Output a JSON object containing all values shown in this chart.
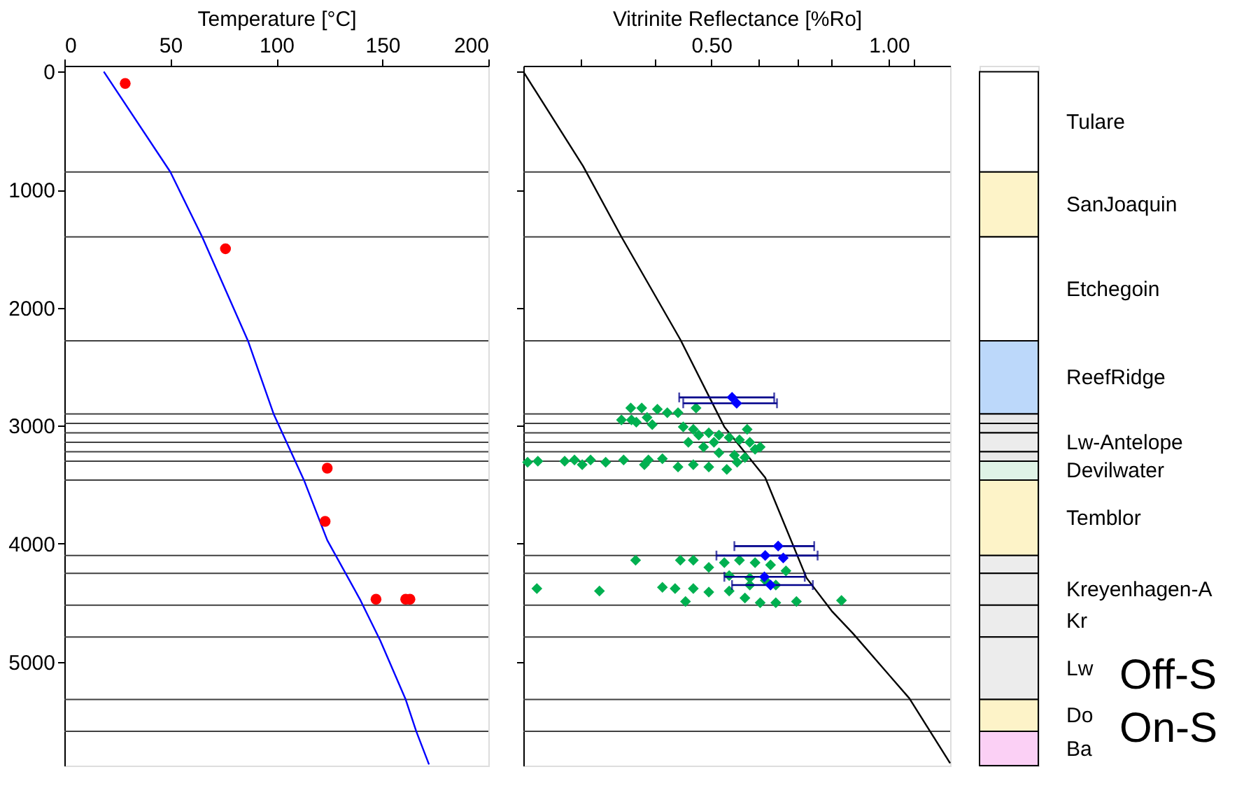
{
  "chart_data": [
    {
      "type": "scatter",
      "xlabel": "Temperature [°C]",
      "xlim": [
        0,
        200
      ],
      "xticks": [
        0,
        50,
        100,
        150,
        200
      ],
      "ylim": [
        5880,
        -50
      ],
      "yticks": [
        0,
        1000,
        2000,
        3000,
        4000,
        5000
      ],
      "grid": false,
      "ref_lines": [
        {
          "axis": "y",
          "value": 850,
          "color": "#404040"
        },
        {
          "axis": "y",
          "value": 1400,
          "color": "#404040"
        },
        {
          "axis": "y",
          "value": 2280,
          "color": "#404040"
        },
        {
          "axis": "y",
          "value": 2900,
          "color": "#404040"
        },
        {
          "axis": "y",
          "value": 2980,
          "color": "#404040"
        },
        {
          "axis": "y",
          "value": 3060,
          "color": "#404040"
        },
        {
          "axis": "y",
          "value": 3140,
          "color": "#404040"
        },
        {
          "axis": "y",
          "value": 3220,
          "color": "#404040"
        },
        {
          "axis": "y",
          "value": 3300,
          "color": "#404040"
        },
        {
          "axis": "y",
          "value": 3460,
          "color": "#404040"
        },
        {
          "axis": "y",
          "value": 4100,
          "color": "#404040"
        },
        {
          "axis": "y",
          "value": 4250,
          "color": "#404040"
        },
        {
          "axis": "y",
          "value": 4520,
          "color": "#404040"
        },
        {
          "axis": "y",
          "value": 4790,
          "color": "#404040"
        },
        {
          "axis": "y",
          "value": 5320,
          "color": "#404040"
        },
        {
          "axis": "y",
          "value": 5590,
          "color": "#404040"
        }
      ],
      "series": [
        {
          "type": "line",
          "color": "#0000ff",
          "line_style": "solid",
          "marker": "none",
          "x": [
            18.6,
            50,
            65,
            86.6,
            98.7,
            101,
            113,
            124,
            139.7,
            149,
            161,
            166,
            172
          ],
          "values": [
            0,
            850,
            1400,
            2280,
            2900,
            2990,
            3460,
            3970,
            4480,
            4820,
            5320,
            5590,
            5870
          ]
        },
        {
          "type": "scatter",
          "color": "#ff0000",
          "marker": "circle",
          "x": [
            28.7,
            76,
            124,
            123,
            147,
            161,
            163
          ],
          "values": [
            100,
            1500,
            3360,
            3810,
            4470,
            4470,
            4470
          ]
        }
      ]
    },
    {
      "type": "scatter",
      "xlabel": "Vitrinite Reflectance [%Ro]",
      "log": "x",
      "xlim": [
        0.24,
        1.27
      ],
      "xticks": [
        {
          "value": 0.3,
          "label": null
        },
        {
          "value": 0.4,
          "label": null
        },
        {
          "value": 0.5,
          "label": "0.50"
        },
        {
          "value": 0.6,
          "label": null
        },
        {
          "value": 0.7,
          "label": null
        },
        {
          "value": 0.8,
          "label": null
        },
        {
          "value": 1.0,
          "label": "1.00"
        },
        {
          "value": 1.1,
          "label": null
        }
      ],
      "ylim": [
        5880,
        -50
      ],
      "yticks": [
        0,
        1000,
        2000,
        3000,
        4000,
        5000
      ],
      "tick_labels": "x",
      "grid": false,
      "ref_lines": [
        {
          "axis": "y",
          "value": 850,
          "color": "#404040"
        },
        {
          "axis": "y",
          "value": 1400,
          "color": "#404040"
        },
        {
          "axis": "y",
          "value": 2280,
          "color": "#404040"
        },
        {
          "axis": "y",
          "value": 2900,
          "color": "#404040"
        },
        {
          "axis": "y",
          "value": 2980,
          "color": "#404040"
        },
        {
          "axis": "y",
          "value": 3060,
          "color": "#404040"
        },
        {
          "axis": "y",
          "value": 3140,
          "color": "#404040"
        },
        {
          "axis": "y",
          "value": 3220,
          "color": "#404040"
        },
        {
          "axis": "y",
          "value": 3300,
          "color": "#404040"
        },
        {
          "axis": "y",
          "value": 3460,
          "color": "#404040"
        },
        {
          "axis": "y",
          "value": 4100,
          "color": "#404040"
        },
        {
          "axis": "y",
          "value": 4250,
          "color": "#404040"
        },
        {
          "axis": "y",
          "value": 4520,
          "color": "#404040"
        },
        {
          "axis": "y",
          "value": 4790,
          "color": "#404040"
        },
        {
          "axis": "y",
          "value": 5320,
          "color": "#404040"
        },
        {
          "axis": "y",
          "value": 5590,
          "color": "#404040"
        }
      ],
      "series": [
        {
          "type": "line",
          "color": "#000000",
          "line_style": "solid",
          "marker": "none",
          "x": [
            0.24,
            0.303,
            0.352,
            0.443,
            0.526,
            0.617,
            0.725,
            0.8,
            0.869,
            1.083,
            1.27
          ],
          "values": [
            0,
            800,
            1400,
            2270,
            3010,
            3440,
            4290,
            4570,
            4760,
            5310,
            5860
          ]
        },
        {
          "type": "scatter",
          "color": "#00b050",
          "marker": "diamond",
          "x": [
            0.405,
            0.421,
            0.439,
            0.389,
            0.397,
            0.471,
            0.448,
            0.466,
            0.495,
            0.515,
            0.536,
            0.558,
            0.581,
            0.605,
            0.575,
            0.457,
            0.485,
            0.515,
            0.547,
            0.57,
            0.413,
            0.439,
            0.466,
            0.495,
            0.531,
            0.553,
            0.593,
            0.476,
            0.505,
            0.443,
            0.466,
            0.495,
            0.526,
            0.558,
            0.593,
            0.63,
            0.669,
            0.536,
            0.581,
            0.617,
            0.643,
            0.413,
            0.434,
            0.466,
            0.495,
            0.536,
            0.57,
            0.605,
            0.643,
            0.697,
            0.452,
            0.831,
            0.581
          ],
          "values": [
            2860,
            2890,
            2890,
            2930,
            2990,
            2850,
            3010,
            3030,
            3060,
            3080,
            3100,
            3120,
            3140,
            3180,
            3030,
            3140,
            3180,
            3230,
            3250,
            3270,
            3280,
            3350,
            3330,
            3350,
            3370,
            3310,
            3200,
            3080,
            3140,
            4140,
            4140,
            4200,
            4160,
            4140,
            4160,
            4180,
            4230,
            4270,
            4290,
            4310,
            4350,
            4370,
            4380,
            4380,
            4410,
            4400,
            4460,
            4500,
            4500,
            4490,
            4490,
            4480,
            4350
          ]
        },
        {
          "type": "scatter",
          "color": "#00b050",
          "marker": "diamond",
          "x": [
            0.244,
            0.254,
            0.282,
            0.293,
            0.302,
            0.312,
            0.331,
            0.355,
            0.385,
            0.391,
            0.352,
            0.366,
            0.365,
            0.381,
            0.373,
            0.372,
            0.253,
            0.323
          ],
          "values": [
            3310,
            3300,
            3300,
            3290,
            3330,
            3290,
            3310,
            3290,
            3330,
            3290,
            2950,
            2950,
            2850,
            2850,
            2970,
            4140,
            4380,
            4400
          ]
        },
        {
          "type": "scatter",
          "color": "#0000ff",
          "marker": "diamond",
          "x": [
            0.542,
            0.552,
            0.649,
            0.617,
            0.662,
            0.615,
            0.63
          ],
          "values": [
            2760,
            2810,
            4020,
            4100,
            4120,
            4280,
            4350
          ],
          "xerrors": [
            [
              0.441,
              0.639
            ],
            [
              0.448,
              0.646
            ],
            [
              0.547,
              0.747
            ],
            [
              0.51,
              0.757
            ],
            null,
            [
              0.526,
              0.72
            ],
            [
              0.542,
              0.743
            ]
          ]
        }
      ]
    },
    {
      "type": "bar",
      "stacked": true,
      "categories": [
        null
      ],
      "ylim": [
        5880,
        -50
      ],
      "annotations": [
        "Off-S",
        "On-S"
      ],
      "series": [
        {
          "name": "Tulare",
          "color": "#ffffff",
          "values": [
            850
          ]
        },
        {
          "name": "SanJoaquin",
          "color": "#fdf3c8",
          "values": [
            550
          ]
        },
        {
          "name": "Etchegoin",
          "color": "#ffffff",
          "values": [
            880
          ]
        },
        {
          "name": "ReefRidge",
          "color": "#bcd8fa",
          "values": [
            620
          ]
        },
        {
          "color": "#e8e8e8",
          "values": [
            80
          ]
        },
        {
          "color": "#e8e8e8",
          "values": [
            80
          ]
        },
        {
          "name": "Lw-Antelope",
          "color": "#ececec",
          "values": [
            160
          ]
        },
        {
          "color": "#e8e8e8",
          "values": [
            80
          ]
        },
        {
          "name": "Devilwater",
          "color": "#dff3e6",
          "values": [
            160
          ]
        },
        {
          "name": "Temblor",
          "color": "#fdf3c8",
          "values": [
            640
          ]
        },
        {
          "color": "#ececec",
          "values": [
            150
          ]
        },
        {
          "name": "Kreyenhagen-A",
          "color": "#ececec",
          "values": [
            270
          ]
        },
        {
          "name": "Kr",
          "color": "#ececec",
          "values": [
            270
          ]
        },
        {
          "name": "Lw",
          "color": "#ececec",
          "values": [
            530
          ]
        },
        {
          "name": "Do",
          "color": "#fdf3c8",
          "values": [
            270
          ]
        },
        {
          "name": "Ba",
          "color": "#fbd0f5",
          "values": [
            290
          ]
        }
      ]
    }
  ]
}
